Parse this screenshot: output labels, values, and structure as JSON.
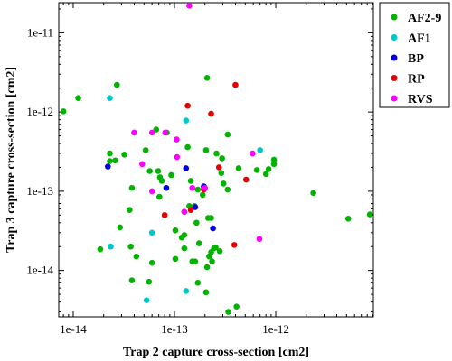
{
  "chart_data": {
    "type": "scatter",
    "title": "",
    "xlabel": "Trap 2 capture cross-section [cm2]",
    "ylabel": "Trap 3 capture cross-section [cm2]",
    "xscale": "log",
    "yscale": "log",
    "xlim": [
      7.2e-15,
      9.2e-12
    ],
    "ylim": [
      2.6e-15,
      2.4e-11
    ],
    "xticks": [
      {
        "value": 1e-14,
        "label": "1e-14"
      },
      {
        "value": 1e-13,
        "label": "1e-13"
      },
      {
        "value": 1e-12,
        "label": "1e-12"
      }
    ],
    "yticks": [
      {
        "value": 1e-14,
        "label": "1e-14"
      },
      {
        "value": 1e-13,
        "label": "1e-13"
      },
      {
        "value": 1e-12,
        "label": "1e-12"
      },
      {
        "value": 1e-11,
        "label": "1e-11"
      }
    ],
    "grid": false,
    "legend_position": "outside-top-right",
    "series": [
      {
        "name": "AF2-9",
        "color": "#00b400",
        "points": [
          [
            8e-15,
            1.02e-12
          ],
          [
            1.12e-14,
            1.5e-12
          ],
          [
            2.7e-14,
            2.2e-12
          ],
          [
            2.3e-14,
            3e-13
          ],
          [
            2.3e-14,
            2.4e-13
          ],
          [
            2.6e-14,
            2.45e-13
          ],
          [
            3.2e-14,
            2.9e-13
          ],
          [
            3.8e-14,
            1.1e-13
          ],
          [
            2.9e-14,
            3.5e-14
          ],
          [
            3.6e-14,
            5.8e-14
          ],
          [
            3.7e-14,
            2e-14
          ],
          [
            1.85e-14,
            1.85e-14
          ],
          [
            4.2e-14,
            1.5e-14
          ],
          [
            3.8e-14,
            7.5e-15
          ],
          [
            5.2e-14,
            3.3e-13
          ],
          [
            6.6e-14,
            6e-13
          ],
          [
            5.7e-14,
            1.8e-13
          ],
          [
            6.9e-14,
            1.8e-13
          ],
          [
            7.2e-14,
            1.5e-13
          ],
          [
            7.5e-14,
            1.35e-13
          ],
          [
            9.3e-14,
            1.6e-13
          ],
          [
            7.1e-14,
            8.5e-14
          ],
          [
            8.4e-14,
            5.5e-13
          ],
          [
            6e-14,
            1.25e-14
          ],
          [
            5.6e-14,
            7.2e-15
          ],
          [
            1.02e-13,
            3.2e-14
          ],
          [
            1.02e-13,
            1.4e-14
          ],
          [
            1.18e-13,
            2.6e-14
          ],
          [
            1.25e-13,
            2.8e-14
          ],
          [
            1.25e-13,
            1.9e-14
          ],
          [
            1.25e-13,
            5.5e-14
          ],
          [
            1.35e-13,
            3.6e-13
          ],
          [
            1.4e-13,
            6.5e-14
          ],
          [
            1.45e-13,
            1.35e-13
          ],
          [
            1.5e-13,
            1.3e-14
          ],
          [
            1.6e-13,
            1.3e-14
          ],
          [
            1.65e-13,
            4e-14
          ],
          [
            1.75e-13,
            2.2e-14
          ],
          [
            1.7e-13,
            7e-15
          ],
          [
            1.58e-13,
            6.5e-14
          ],
          [
            1.7e-13,
            1.05e-13
          ],
          [
            1.9e-13,
            9e-14
          ],
          [
            1.95e-13,
            1.1e-13
          ],
          [
            2.05e-13,
            3.3e-13
          ],
          [
            2.1e-13,
            2.7e-12
          ],
          [
            2.15e-13,
            4.6e-14
          ],
          [
            2.3e-13,
            4.6e-14
          ],
          [
            2.3e-13,
            1.7e-14
          ],
          [
            2.2e-13,
            1.5e-14
          ],
          [
            2.35e-13,
            1.3e-14
          ],
          [
            2.1e-13,
            1.1e-14
          ],
          [
            2.45e-13,
            1.9e-14
          ],
          [
            2.6e-13,
            3e-13
          ],
          [
            2.55e-13,
            1.95e-14
          ],
          [
            2.9e-13,
            1.7e-13
          ],
          [
            3.05e-13,
            1.25e-13
          ],
          [
            2.95e-13,
            2.6e-13
          ],
          [
            3.35e-13,
            5.2e-13
          ],
          [
            3.35e-13,
            1.05e-13
          ],
          [
            3.4e-13,
            3e-15
          ],
          [
            4.1e-13,
            3.5e-15
          ],
          [
            2.05e-13,
            5.3e-15
          ],
          [
            2.8e-13,
            1.75e-14
          ],
          [
            4.3e-13,
            1.95e-13
          ],
          [
            6.5e-13,
            1.85e-13
          ],
          [
            8e-13,
            1.65e-13
          ],
          [
            8.5e-13,
            1.9e-13
          ],
          [
            9.6e-13,
            2.2e-13
          ],
          [
            9.6e-13,
            2.5e-13
          ],
          [
            2.35e-12,
            9.5e-14
          ],
          [
            5.2e-12,
            4.5e-14
          ],
          [
            8.5e-12,
            5.1e-14
          ]
        ]
      },
      {
        "name": "AF1",
        "color": "#00c8c8",
        "points": [
          [
            2.3e-14,
            1.5e-12
          ],
          [
            2.35e-14,
            2e-14
          ],
          [
            5.3e-14,
            4.2e-15
          ],
          [
            6e-14,
            3e-14
          ],
          [
            1.3e-13,
            5.5e-15
          ],
          [
            1.3e-13,
            7.8e-13
          ],
          [
            7e-13,
            3.3e-13
          ]
        ]
      },
      {
        "name": "BP",
        "color": "#0000e6",
        "points": [
          [
            2.2e-14,
            2.05e-13
          ],
          [
            8.3e-14,
            1.1e-13
          ],
          [
            1.3e-13,
            1.95e-13
          ],
          [
            1.6e-13,
            6.3e-14
          ],
          [
            1.95e-13,
            1.15e-13
          ],
          [
            2.4e-13,
            3.4e-14
          ]
        ]
      },
      {
        "name": "RP",
        "color": "#e60000",
        "points": [
          [
            1.35e-13,
            1.2e-12
          ],
          [
            2.3e-13,
            9.5e-13
          ],
          [
            4e-13,
            2.2e-12
          ],
          [
            8e-14,
            5e-14
          ],
          [
            1.45e-13,
            5.8e-14
          ],
          [
            2.75e-13,
            2e-13
          ],
          [
            1.95e-13,
            1.05e-13
          ],
          [
            5.1e-13,
            1.4e-13
          ],
          [
            3.9e-13,
            2.1e-14
          ]
        ]
      },
      {
        "name": "RVS",
        "color": "#ff00ff",
        "points": [
          [
            1.4e-13,
            2.2e-11
          ],
          [
            4e-14,
            5.5e-13
          ],
          [
            6e-14,
            5.5e-13
          ],
          [
            8.1e-14,
            5.5e-13
          ],
          [
            1.05e-13,
            4.5e-13
          ],
          [
            4.8e-14,
            2.2e-13
          ],
          [
            1.06e-13,
            2.7e-13
          ],
          [
            6e-14,
            1e-13
          ],
          [
            1.25e-13,
            5.5e-14
          ],
          [
            1.5e-13,
            1.1e-13
          ],
          [
            2e-13,
            1.1e-13
          ],
          [
            5.9e-13,
            3e-13
          ],
          [
            6.9e-13,
            2.5e-14
          ]
        ]
      }
    ]
  }
}
